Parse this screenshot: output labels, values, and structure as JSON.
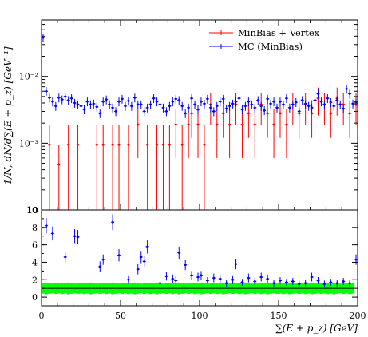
{
  "chart_data": [
    {
      "type": "scatter",
      "panel": "main",
      "title": "",
      "ylabel": "1/N, dN/d∑(E + p_z) [GeV⁻¹]",
      "xlabel": "",
      "ylim": [
        0.0001,
        0.07
      ],
      "xlim": [
        0,
        200
      ],
      "yscale": "log",
      "yticklabels": [
        "10",
        "10⁻³",
        "10⁻²"
      ],
      "legend": {
        "placement": "top-right",
        "entries": [
          "MinBias + Vertex",
          "MC (MinBias)"
        ]
      },
      "series": [
        {
          "name": "MinBias + Vertex",
          "color": "#ff0000",
          "x": [
            5,
            11,
            17,
            23,
            35,
            39,
            45,
            49,
            55,
            61,
            67,
            73,
            77,
            81,
            85,
            89,
            93,
            95,
            99,
            103,
            107,
            111,
            115,
            119,
            123,
            127,
            131,
            135,
            139,
            143,
            147,
            151,
            155,
            159,
            163,
            167,
            171,
            175,
            179,
            183,
            187,
            191,
            195,
            199
          ],
          "y": [
            0.00095,
            0.00048,
            0.00095,
            0.00095,
            0.00095,
            0.00095,
            0.00095,
            0.00095,
            0.00095,
            0.0019,
            0.00095,
            0.00095,
            0.00095,
            0.00095,
            0.0019,
            0.00095,
            0.0019,
            0.0028,
            0.0019,
            0.00095,
            0.0038,
            0.0019,
            0.0028,
            0.0019,
            0.0038,
            0.0019,
            0.0028,
            0.0019,
            0.0038,
            0.0028,
            0.0019,
            0.0028,
            0.0019,
            0.0038,
            0.0028,
            0.0038,
            0.0028,
            0.0047,
            0.0038,
            0.0028,
            0.0047,
            0.0038,
            0.0028,
            0.0038
          ],
          "yerr": [
            0.00094,
            0.00047,
            0.00094,
            0.00094,
            0.00094,
            0.00094,
            0.00094,
            0.00094,
            0.00094,
            0.0013,
            0.00094,
            0.00094,
            0.00094,
            0.00094,
            0.0013,
            0.00094,
            0.0013,
            0.0016,
            0.0013,
            0.00094,
            0.0019,
            0.0013,
            0.0016,
            0.0013,
            0.0019,
            0.0013,
            0.0016,
            0.0013,
            0.0019,
            0.0016,
            0.0013,
            0.0016,
            0.0013,
            0.0019,
            0.0016,
            0.0019,
            0.0016,
            0.0021,
            0.0019,
            0.0016,
            0.0021,
            0.0019,
            0.0016,
            0.0019
          ]
        },
        {
          "name": "MC (MinBias)",
          "color": "#0000ff",
          "x": [
            1,
            3,
            5,
            7,
            9,
            11,
            13,
            15,
            17,
            19,
            21,
            23,
            25,
            27,
            29,
            31,
            33,
            35,
            37,
            39,
            41,
            43,
            45,
            47,
            49,
            51,
            53,
            55,
            57,
            59,
            61,
            63,
            65,
            67,
            69,
            71,
            73,
            75,
            77,
            79,
            81,
            83,
            85,
            87,
            89,
            91,
            93,
            95,
            97,
            99,
            101,
            103,
            105,
            107,
            109,
            111,
            113,
            115,
            117,
            119,
            121,
            123,
            125,
            127,
            129,
            131,
            133,
            135,
            137,
            139,
            141,
            143,
            145,
            147,
            149,
            151,
            153,
            155,
            157,
            159,
            161,
            163,
            165,
            167,
            169,
            171,
            173,
            175,
            177,
            179,
            181,
            183,
            185,
            187,
            189,
            191,
            193,
            195,
            197,
            199
          ],
          "y": [
            0.038,
            0.006,
            0.0048,
            0.0042,
            0.0036,
            0.0048,
            0.0045,
            0.005,
            0.0044,
            0.0047,
            0.004,
            0.0038,
            0.0036,
            0.0032,
            0.0042,
            0.0038,
            0.0039,
            0.0035,
            0.0028,
            0.0042,
            0.0045,
            0.0038,
            0.0034,
            0.003,
            0.0042,
            0.0046,
            0.0036,
            0.0043,
            0.0036,
            0.0048,
            0.0038,
            0.0038,
            0.003,
            0.0034,
            0.0038,
            0.0047,
            0.0042,
            0.0038,
            0.0034,
            0.003,
            0.0036,
            0.0042,
            0.0046,
            0.0044,
            0.0036,
            0.0028,
            0.0034,
            0.0047,
            0.0038,
            0.0032,
            0.0042,
            0.0039,
            0.0046,
            0.0034,
            0.003,
            0.0036,
            0.0042,
            0.0046,
            0.0033,
            0.0036,
            0.0039,
            0.0042,
            0.0047,
            0.0032,
            0.0036,
            0.0042,
            0.0038,
            0.0034,
            0.0044,
            0.0036,
            0.0031,
            0.0046,
            0.0039,
            0.0042,
            0.0034,
            0.0042,
            0.0038,
            0.0047,
            0.0034,
            0.0038,
            0.0041,
            0.003,
            0.0044,
            0.0039,
            0.0036,
            0.0034,
            0.0044,
            0.0055,
            0.0042,
            0.0038,
            0.0047,
            0.0041,
            0.0036,
            0.0044,
            0.0038,
            0.0033,
            0.0065,
            0.0055,
            0.0039,
            0.0042
          ]
        }
      ]
    },
    {
      "type": "scatter",
      "panel": "ratio",
      "title": "",
      "xlabel": "∑(E + p_z) [GeV]",
      "ylabel": "",
      "ylim": [
        -1,
        10
      ],
      "xlim": [
        0,
        200
      ],
      "yticks": [
        0,
        2,
        4,
        6,
        8,
        10
      ],
      "xticks": [
        0,
        50,
        100,
        150,
        200
      ],
      "reference_line": 1,
      "band": {
        "color": "#00ff00",
        "center": 1.0,
        "halfwidth": 0.55
      },
      "series": [
        {
          "name": "",
          "color": "#0000ff",
          "x": [
            3,
            7,
            15,
            21,
            23,
            37,
            39,
            45,
            49,
            55,
            61,
            63,
            65,
            67,
            75,
            79,
            83,
            85,
            87,
            91,
            95,
            99,
            101,
            105,
            109,
            113,
            117,
            121,
            123,
            127,
            131,
            135,
            139,
            143,
            147,
            151,
            155,
            159,
            163,
            167,
            171,
            175,
            179,
            183,
            187,
            191,
            195,
            199
          ],
          "y": [
            8.2,
            7.3,
            4.6,
            7.0,
            6.9,
            3.5,
            4.3,
            8.6,
            4.8,
            2.0,
            3.2,
            4.6,
            4.1,
            5.8,
            1.6,
            2.4,
            2.1,
            1.9,
            5.1,
            3.7,
            2.5,
            2.3,
            2.5,
            1.9,
            2.2,
            2.1,
            1.6,
            2.0,
            3.8,
            1.7,
            2.2,
            1.8,
            2.3,
            2.1,
            1.6,
            1.9,
            1.7,
            1.8,
            1.5,
            1.6,
            2.3,
            1.9,
            1.5,
            1.7,
            1.6,
            1.8,
            1.6,
            4.3
          ],
          "yerr": [
            0.9,
            0.8,
            0.6,
            0.8,
            0.8,
            0.6,
            0.6,
            0.9,
            0.7,
            0.5,
            0.6,
            0.7,
            0.6,
            0.8,
            0.4,
            0.5,
            0.5,
            0.5,
            0.7,
            0.6,
            0.5,
            0.5,
            0.5,
            0.4,
            0.5,
            0.5,
            0.4,
            0.5,
            0.6,
            0.4,
            0.5,
            0.4,
            0.5,
            0.5,
            0.4,
            0.4,
            0.4,
            0.4,
            0.4,
            0.4,
            0.5,
            0.4,
            0.4,
            0.4,
            0.4,
            0.4,
            0.4,
            0.6
          ]
        }
      ]
    }
  ]
}
